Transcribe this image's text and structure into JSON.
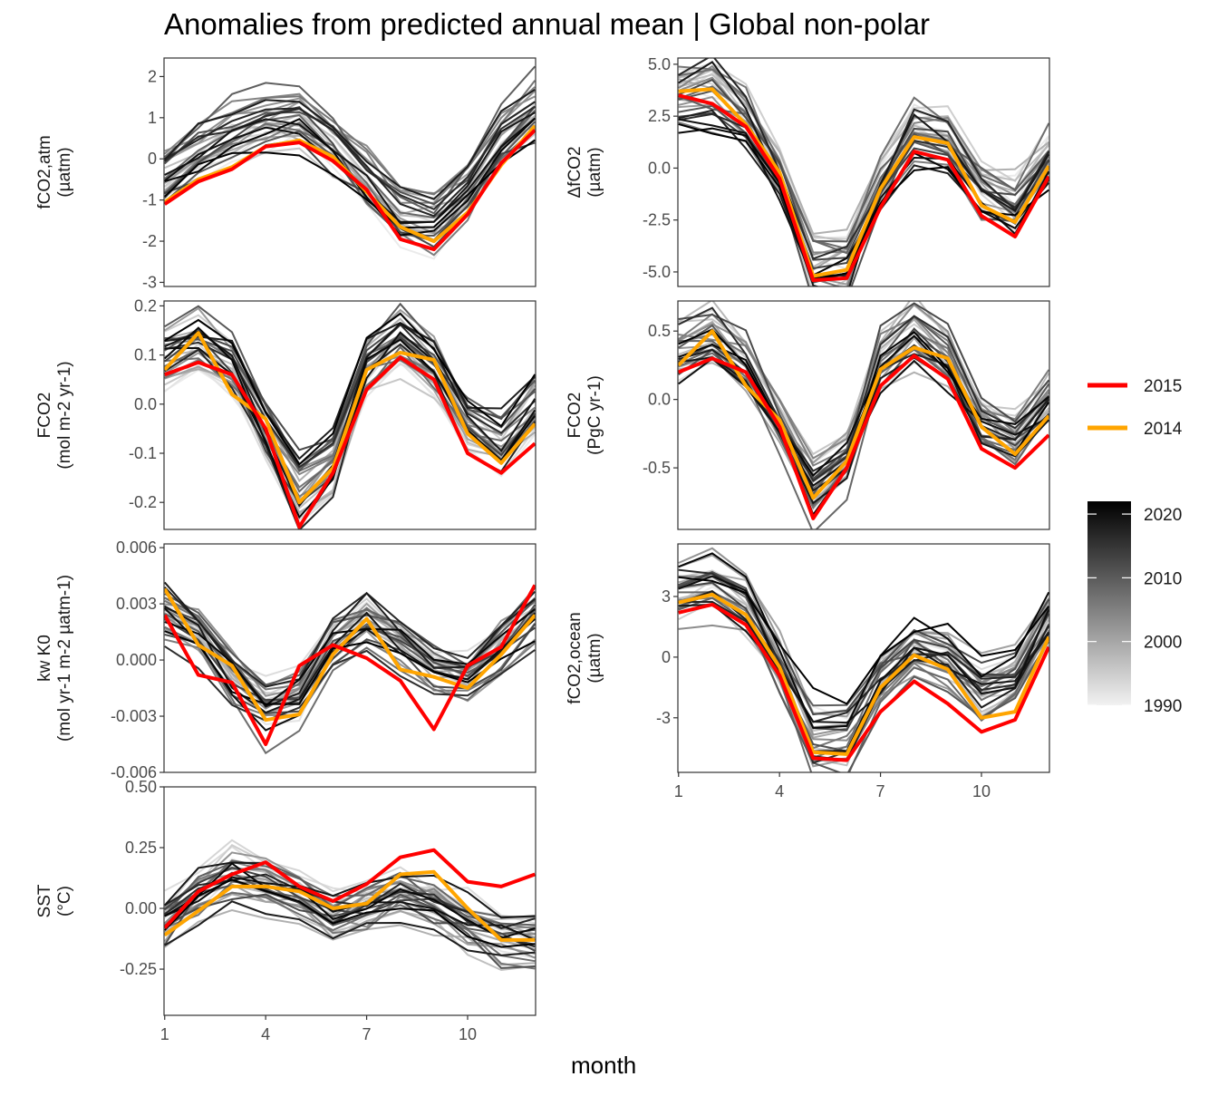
{
  "title": "Anomalies from predicted annual mean | Global non-polar",
  "xlabel": "month",
  "colors": {
    "highlight_2015": "#ff0000",
    "highlight_2014": "#ffa500",
    "years_low": "#ebebeb",
    "years_high": "#000000"
  },
  "legend": {
    "lines": [
      {
        "label": "2015",
        "color": "#ff0000"
      },
      {
        "label": "2014",
        "color": "#ffa500"
      }
    ],
    "colorbar": {
      "min": 1990,
      "max": 2022,
      "ticks": [
        "2020",
        "2010",
        "2000",
        "1990"
      ]
    }
  },
  "chart_data": [
    {
      "type": "line",
      "id": "fco2_atm",
      "ylabel": [
        "fCO2,atm",
        "(µatm)"
      ],
      "x": [
        1,
        2,
        3,
        4,
        5,
        6,
        7,
        8,
        9,
        10,
        11,
        12
      ],
      "ylim": [
        -3.1,
        2.45
      ],
      "yticks": [
        2,
        1,
        0,
        -1,
        -2,
        -3
      ],
      "ytick_labels": [
        "2",
        "1",
        "0",
        "-1",
        "-2",
        "-3"
      ],
      "xticks": [
        1,
        4,
        7,
        10
      ],
      "xtick_labels": [
        "1",
        "4",
        "7",
        "10"
      ],
      "show_xaxis": false,
      "series": [
        {
          "name": "2015",
          "values": [
            -1.1,
            -0.55,
            -0.25,
            0.3,
            0.4,
            -0.05,
            -0.75,
            -1.95,
            -2.2,
            -1.35,
            -0.1,
            0.7
          ]
        },
        {
          "name": "2014",
          "values": [
            -1.05,
            -0.5,
            -0.2,
            0.3,
            0.45,
            0.05,
            -0.8,
            -1.65,
            -2.0,
            -1.3,
            -0.15,
            0.8
          ]
        }
      ],
      "bg_base": [
        -0.4,
        0.2,
        0.6,
        0.9,
        1.0,
        0.4,
        -0.5,
        -1.4,
        -1.6,
        -0.8,
        0.5,
        1.2
      ]
    },
    {
      "type": "line",
      "id": "delta_fco2",
      "ylabel": [
        "ΔfCO2",
        "(µatm)"
      ],
      "x": [
        1,
        2,
        3,
        4,
        5,
        6,
        7,
        8,
        9,
        10,
        11,
        12
      ],
      "ylim": [
        -5.7,
        5.3
      ],
      "yticks": [
        5,
        2.5,
        0,
        -2.5,
        -5
      ],
      "ytick_labels": [
        "5.0",
        "2.5",
        "0.0",
        "-2.5",
        "-5.0"
      ],
      "xticks": [
        1,
        4,
        7,
        10
      ],
      "xtick_labels": [
        "1",
        "4",
        "7",
        "10"
      ],
      "show_xaxis": false,
      "series": [
        {
          "name": "2015",
          "values": [
            3.5,
            3.1,
            2.0,
            -0.5,
            -5.4,
            -5.3,
            -1.9,
            0.8,
            0.4,
            -2.3,
            -3.3,
            -0.4
          ]
        },
        {
          "name": "2014",
          "values": [
            3.7,
            3.8,
            2.1,
            -0.2,
            -5.2,
            -4.9,
            -1.0,
            1.5,
            1.2,
            -1.8,
            -2.6,
            0.1
          ]
        }
      ],
      "bg_base": [
        3.6,
        3.8,
        2.6,
        -0.3,
        -4.8,
        -4.5,
        -0.8,
        1.8,
        1.4,
        -1.0,
        -1.8,
        0.6
      ]
    },
    {
      "type": "line",
      "id": "fco2_flux_area",
      "ylabel": [
        "FCO2",
        "(mol m-2 yr-1)"
      ],
      "x": [
        1,
        2,
        3,
        4,
        5,
        6,
        7,
        8,
        9,
        10,
        11,
        12
      ],
      "ylim": [
        -0.255,
        0.21
      ],
      "yticks": [
        0.2,
        0.1,
        0,
        -0.1,
        -0.2
      ],
      "ytick_labels": [
        "0.2",
        "0.1",
        "0.0",
        "-0.1",
        "-0.2"
      ],
      "xticks": [
        1,
        4,
        7,
        10
      ],
      "xtick_labels": [
        "1",
        "4",
        "7",
        "10"
      ],
      "show_xaxis": false,
      "series": [
        {
          "name": "2015",
          "values": [
            0.06,
            0.085,
            0.06,
            -0.05,
            -0.25,
            -0.14,
            0.03,
            0.095,
            0.05,
            -0.1,
            -0.14,
            -0.08
          ]
        },
        {
          "name": "2014",
          "values": [
            0.07,
            0.145,
            0.02,
            -0.03,
            -0.2,
            -0.13,
            0.07,
            0.105,
            0.09,
            -0.06,
            -0.12,
            -0.04
          ]
        }
      ],
      "bg_base": [
        0.1,
        0.13,
        0.08,
        -0.05,
        -0.18,
        -0.12,
        0.08,
        0.14,
        0.08,
        -0.04,
        -0.08,
        0.0
      ]
    },
    {
      "type": "line",
      "id": "fco2_flux_total",
      "ylabel": [
        "FCO2",
        "(PgC yr-1)"
      ],
      "x": [
        1,
        2,
        3,
        4,
        5,
        6,
        7,
        8,
        9,
        10,
        11,
        12
      ],
      "ylim": [
        -0.95,
        0.72
      ],
      "yticks": [
        0.5,
        0,
        -0.5
      ],
      "ytick_labels": [
        "0.5",
        "0.0",
        "-0.5"
      ],
      "xticks": [
        1,
        4,
        7,
        10
      ],
      "xtick_labels": [
        "1",
        "4",
        "7",
        "10"
      ],
      "show_xaxis": false,
      "series": [
        {
          "name": "2015",
          "values": [
            0.2,
            0.3,
            0.2,
            -0.2,
            -0.87,
            -0.5,
            0.1,
            0.32,
            0.15,
            -0.36,
            -0.5,
            -0.26
          ]
        },
        {
          "name": "2014",
          "values": [
            0.25,
            0.5,
            0.1,
            -0.15,
            -0.72,
            -0.45,
            0.22,
            0.38,
            0.3,
            -0.2,
            -0.4,
            -0.12
          ]
        }
      ],
      "bg_base": [
        0.35,
        0.45,
        0.25,
        -0.15,
        -0.6,
        -0.4,
        0.28,
        0.48,
        0.3,
        -0.14,
        -0.28,
        0.02
      ]
    },
    {
      "type": "line",
      "id": "kw_k0",
      "ylabel": [
        "kw K0",
        "(mol yr-1 m-2 µatm-1)"
      ],
      "x": [
        1,
        2,
        3,
        4,
        5,
        6,
        7,
        8,
        9,
        10,
        11,
        12
      ],
      "ylim": [
        -0.006,
        0.0062
      ],
      "yticks": [
        0.006,
        0.003,
        0,
        -0.003,
        -0.006
      ],
      "ytick_labels": [
        "0.006",
        "0.003",
        "0.000",
        "-0.003",
        "-0.006"
      ],
      "xticks": [
        1,
        4,
        7,
        10
      ],
      "xtick_labels": [
        "1",
        "4",
        "7",
        "10"
      ],
      "show_xaxis": false,
      "series": [
        {
          "name": "2015",
          "values": [
            0.0024,
            -0.0008,
            -0.0012,
            -0.0045,
            -0.0003,
            0.0008,
            0.0001,
            -0.0011,
            -0.0037,
            -0.0003,
            0.0007,
            0.004
          ]
        },
        {
          "name": "2014",
          "values": [
            0.0038,
            0.0008,
            -0.0003,
            -0.0032,
            -0.0029,
            0.0003,
            0.0022,
            -0.0005,
            -0.0009,
            -0.0015,
            0.0003,
            0.0024
          ]
        }
      ],
      "bg_base": [
        0.0022,
        0.0012,
        -0.0012,
        -0.0028,
        -0.0022,
        0.0006,
        0.0018,
        0.0008,
        -0.0008,
        -0.0012,
        0.0004,
        0.0022
      ]
    },
    {
      "type": "line",
      "id": "fco2_ocean",
      "ylabel": [
        "fCO2,ocean",
        "(µatm)"
      ],
      "x": [
        1,
        2,
        3,
        4,
        5,
        6,
        7,
        8,
        9,
        10,
        11,
        12
      ],
      "ylim": [
        -5.7,
        5.6
      ],
      "yticks": [
        3,
        0,
        -3
      ],
      "ytick_labels": [
        "3",
        "0",
        "-3"
      ],
      "xticks": [
        1,
        4,
        7,
        10
      ],
      "xtick_labels": [
        "1",
        "4",
        "7",
        "10"
      ],
      "show_xaxis": true,
      "series": [
        {
          "name": "2015",
          "values": [
            2.2,
            2.6,
            1.6,
            -0.9,
            -5.0,
            -5.1,
            -2.7,
            -1.2,
            -2.3,
            -3.7,
            -3.1,
            0.5
          ]
        },
        {
          "name": "2014",
          "values": [
            2.7,
            3.1,
            2.1,
            -0.5,
            -4.7,
            -4.8,
            -1.5,
            0.1,
            -0.6,
            -3.0,
            -2.7,
            1.0
          ]
        }
      ],
      "bg_base": [
        3.2,
        3.6,
        2.6,
        -0.3,
        -4.0,
        -4.0,
        -1.1,
        0.5,
        -0.1,
        -1.6,
        -0.9,
        2.0
      ]
    },
    {
      "type": "line",
      "id": "sst",
      "ylabel": [
        "SST",
        "(°C)"
      ],
      "x": [
        1,
        2,
        3,
        4,
        5,
        6,
        7,
        8,
        9,
        10,
        11,
        12
      ],
      "ylim": [
        -0.44,
        0.5
      ],
      "yticks": [
        0.5,
        0.25,
        0,
        -0.25
      ],
      "ytick_labels": [
        "0.50",
        "0.25",
        "0.00",
        "-0.25"
      ],
      "xticks": [
        1,
        4,
        7,
        10
      ],
      "xtick_labels": [
        "1",
        "4",
        "7",
        "10"
      ],
      "show_xaxis": true,
      "series": [
        {
          "name": "2015",
          "values": [
            -0.08,
            0.07,
            0.14,
            0.19,
            0.09,
            0.03,
            0.1,
            0.21,
            0.24,
            0.11,
            0.09,
            0.14
          ]
        },
        {
          "name": "2014",
          "values": [
            -0.11,
            -0.01,
            0.09,
            0.09,
            0.07,
            0.0,
            0.02,
            0.14,
            0.15,
            0.0,
            -0.13,
            -0.13
          ]
        }
      ],
      "bg_base": [
        -0.05,
        0.06,
        0.14,
        0.11,
        0.05,
        -0.03,
        0.0,
        0.06,
        0.02,
        -0.06,
        -0.13,
        -0.14
      ]
    }
  ]
}
